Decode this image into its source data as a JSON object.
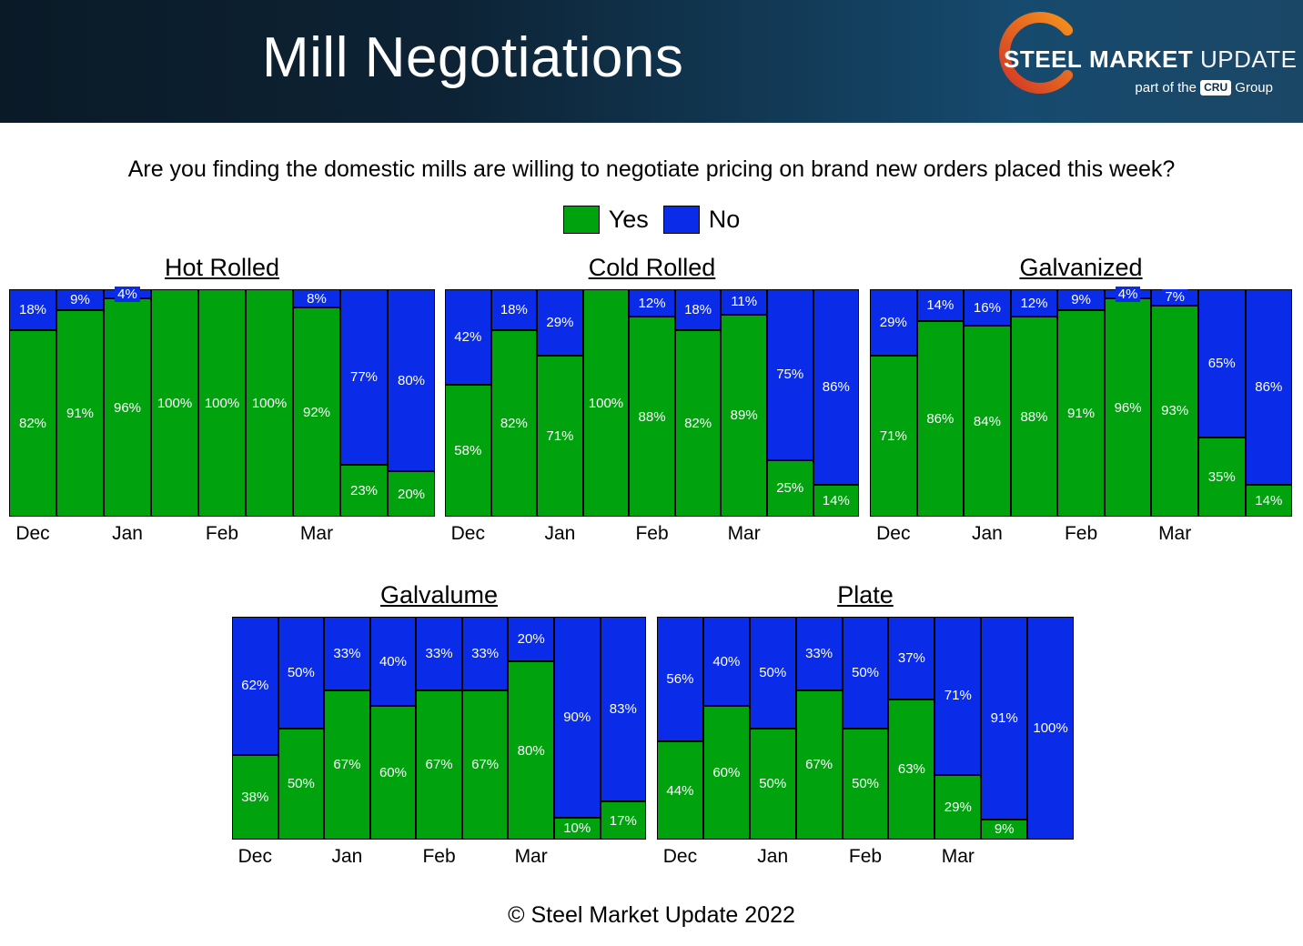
{
  "header": {
    "title": "Mill Negotiations",
    "logo": {
      "word1": "STEEL",
      "word2": "MARKET",
      "word3": "UPDATE",
      "tagline_pre": "part of the",
      "tagline_box": "CRU",
      "tagline_post": "Group",
      "swoosh_color_start": "#d23726",
      "swoosh_color_end": "#f7941d"
    }
  },
  "question": "Are you finding the domestic mills are willing to negotiate pricing on brand new orders placed this week?",
  "legend": {
    "yes_label": "Yes",
    "no_label": "No",
    "yes_color": "#00a30e",
    "no_color": "#0a2ce8"
  },
  "footer": "© Steel Market Update 2022",
  "chart_data": [
    {
      "type": "bar",
      "stacked": true,
      "title": "Hot Rolled",
      "unit": "%",
      "ylim": [
        0,
        100
      ],
      "categories": [
        "Dec",
        "Jan",
        "Feb",
        "Mar"
      ],
      "series": [
        {
          "name": "Yes",
          "values": [
            82,
            91,
            96,
            100,
            100,
            100,
            92,
            23,
            20
          ]
        },
        {
          "name": "No",
          "values": [
            18,
            9,
            4,
            0,
            0,
            0,
            8,
            77,
            80
          ]
        }
      ]
    },
    {
      "type": "bar",
      "stacked": true,
      "title": "Cold Rolled",
      "unit": "%",
      "ylim": [
        0,
        100
      ],
      "categories": [
        "Dec",
        "Jan",
        "Feb",
        "Mar"
      ],
      "series": [
        {
          "name": "Yes",
          "values": [
            58,
            82,
            71,
            100,
            88,
            82,
            89,
            25,
            14
          ]
        },
        {
          "name": "No",
          "values": [
            42,
            18,
            29,
            0,
            12,
            18,
            11,
            75,
            86
          ]
        }
      ]
    },
    {
      "type": "bar",
      "stacked": true,
      "title": "Galvanized",
      "unit": "%",
      "ylim": [
        0,
        100
      ],
      "categories": [
        "Dec",
        "Jan",
        "Feb",
        "Mar"
      ],
      "series": [
        {
          "name": "Yes",
          "values": [
            71,
            86,
            84,
            88,
            91,
            96,
            93,
            35,
            14
          ]
        },
        {
          "name": "No",
          "values": [
            29,
            14,
            16,
            12,
            9,
            4,
            7,
            65,
            86
          ]
        }
      ]
    },
    {
      "type": "bar",
      "stacked": true,
      "title": "Galvalume",
      "unit": "%",
      "ylim": [
        0,
        100
      ],
      "categories": [
        "Dec",
        "Jan",
        "Feb",
        "Mar"
      ],
      "series": [
        {
          "name": "Yes",
          "values": [
            38,
            50,
            67,
            60,
            67,
            67,
            80,
            10,
            17
          ]
        },
        {
          "name": "No",
          "values": [
            62,
            50,
            33,
            40,
            33,
            33,
            20,
            90,
            83
          ]
        }
      ]
    },
    {
      "type": "bar",
      "stacked": true,
      "title": "Plate",
      "unit": "%",
      "ylim": [
        0,
        100
      ],
      "categories": [
        "Dec",
        "Jan",
        "Feb",
        "Mar"
      ],
      "series": [
        {
          "name": "Yes",
          "values": [
            44,
            60,
            50,
            67,
            50,
            63,
            29,
            9,
            0
          ]
        },
        {
          "name": "No",
          "values": [
            56,
            40,
            50,
            33,
            50,
            37,
            71,
            91,
            100
          ]
        }
      ]
    }
  ]
}
